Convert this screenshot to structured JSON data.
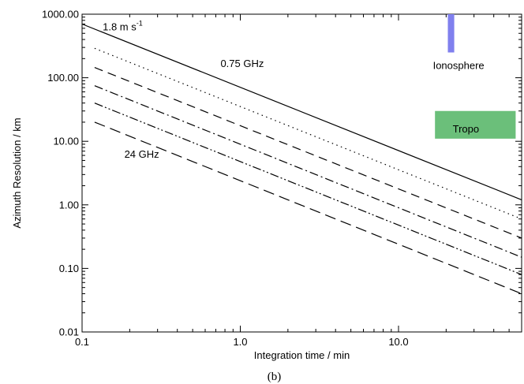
{
  "chart_data": {
    "type": "line",
    "xscale": "log",
    "yscale": "log",
    "xlabel": "Integration time / min",
    "ylabel": "Azimuth Resolution / km",
    "xlim": [
      0.1,
      60
    ],
    "ylim": [
      0.01,
      1000
    ],
    "x_ticks": [
      {
        "value": 0.1,
        "label": "0.1"
      },
      {
        "value": 1,
        "label": "1.0"
      },
      {
        "value": 10,
        "label": "10.0"
      }
    ],
    "y_ticks": [
      {
        "value": 0.01,
        "label": "0.01"
      },
      {
        "value": 0.1,
        "label": "0.10"
      },
      {
        "value": 1,
        "label": "1.00"
      },
      {
        "value": 10,
        "label": "10.00"
      },
      {
        "value": 100,
        "label": "100.00"
      },
      {
        "value": 1000,
        "label": "1000.00"
      }
    ],
    "series": [
      {
        "dash": "solid",
        "color": "#000000",
        "points": [
          [
            0.1,
            700
          ],
          [
            60,
            1.2
          ]
        ]
      },
      {
        "dash": "dotted",
        "color": "#000000",
        "points": [
          [
            0.12,
            290
          ],
          [
            60,
            0.6
          ]
        ]
      },
      {
        "dash": "dashed",
        "color": "#000000",
        "points": [
          [
            0.12,
            145
          ],
          [
            60,
            0.3
          ]
        ]
      },
      {
        "dash": "dash-dot",
        "color": "#000000",
        "points": [
          [
            0.12,
            75
          ],
          [
            60,
            0.15
          ]
        ]
      },
      {
        "dash": "dash-dot-dot",
        "color": "#000000",
        "points": [
          [
            0.12,
            40
          ],
          [
            60,
            0.08
          ]
        ]
      },
      {
        "dash": "long-dash",
        "color": "#000000",
        "points": [
          [
            0.12,
            20
          ],
          [
            60,
            0.04
          ]
        ]
      }
    ],
    "regions": [
      {
        "label": "Ionosphere",
        "color": "#8080ee",
        "x": [
          20.5,
          22.5
        ],
        "y": [
          250,
          1000
        ]
      },
      {
        "label": "Tropo",
        "color": "#6bbf7a",
        "x": [
          17,
          55
        ],
        "y": [
          11,
          30
        ]
      }
    ],
    "annotations": [
      {
        "text": "1.8 m s",
        "superscript": "-1",
        "x": 0.135,
        "y": 620
      },
      {
        "text": "0.75 GHz",
        "x": 0.75,
        "y": 165
      },
      {
        "text": "24 GHz",
        "x": 0.185,
        "y": 6.2
      },
      {
        "text": "Ionosphere",
        "x": 16.5,
        "y": 155
      },
      {
        "text": "Tropo",
        "x": 22,
        "y": 15.5
      }
    ],
    "caption": "(b)"
  }
}
